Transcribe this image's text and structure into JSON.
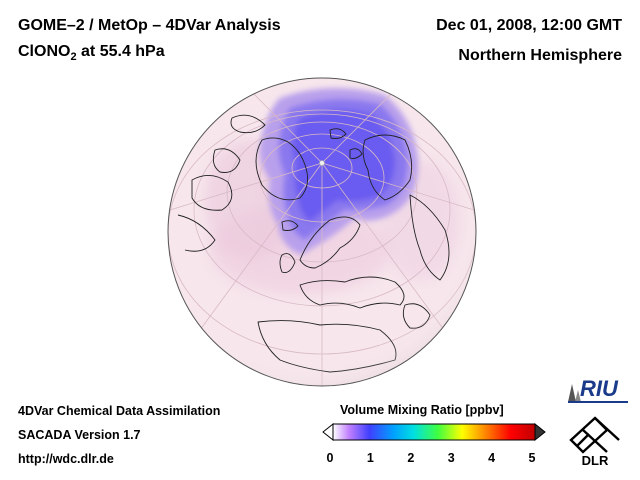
{
  "header": {
    "title_line1": "GOME–2 / MetOp – 4DVar Analysis",
    "species": "ClONO",
    "species_sub": "2",
    "level": " at 55.4 hPa",
    "datetime": "Dec 01, 2008, 12:00 GMT",
    "hemisphere": "Northern Hemisphere"
  },
  "footer": {
    "line1": "4DVar Chemical Data Assimilation",
    "line2": "SACADA Version 1.7",
    "line3": "http://wdc.dlr.de"
  },
  "colorbar": {
    "title": "Volume Mixing Ratio [ppbv]",
    "ticks": [
      "0",
      "1",
      "2",
      "3",
      "4",
      "5"
    ],
    "range": [
      0,
      5
    ],
    "colors": [
      "#ffffff",
      "#c080ff",
      "#4040ff",
      "#00a0ff",
      "#00e0e0",
      "#40ff40",
      "#ffff00",
      "#ff8000",
      "#ff0000",
      "#c00000"
    ]
  },
  "logos": {
    "riu": "RIU",
    "dlr": "DLR"
  },
  "map": {
    "background_color": "#f7e6ec",
    "low_value_color": "#7060e8"
  }
}
